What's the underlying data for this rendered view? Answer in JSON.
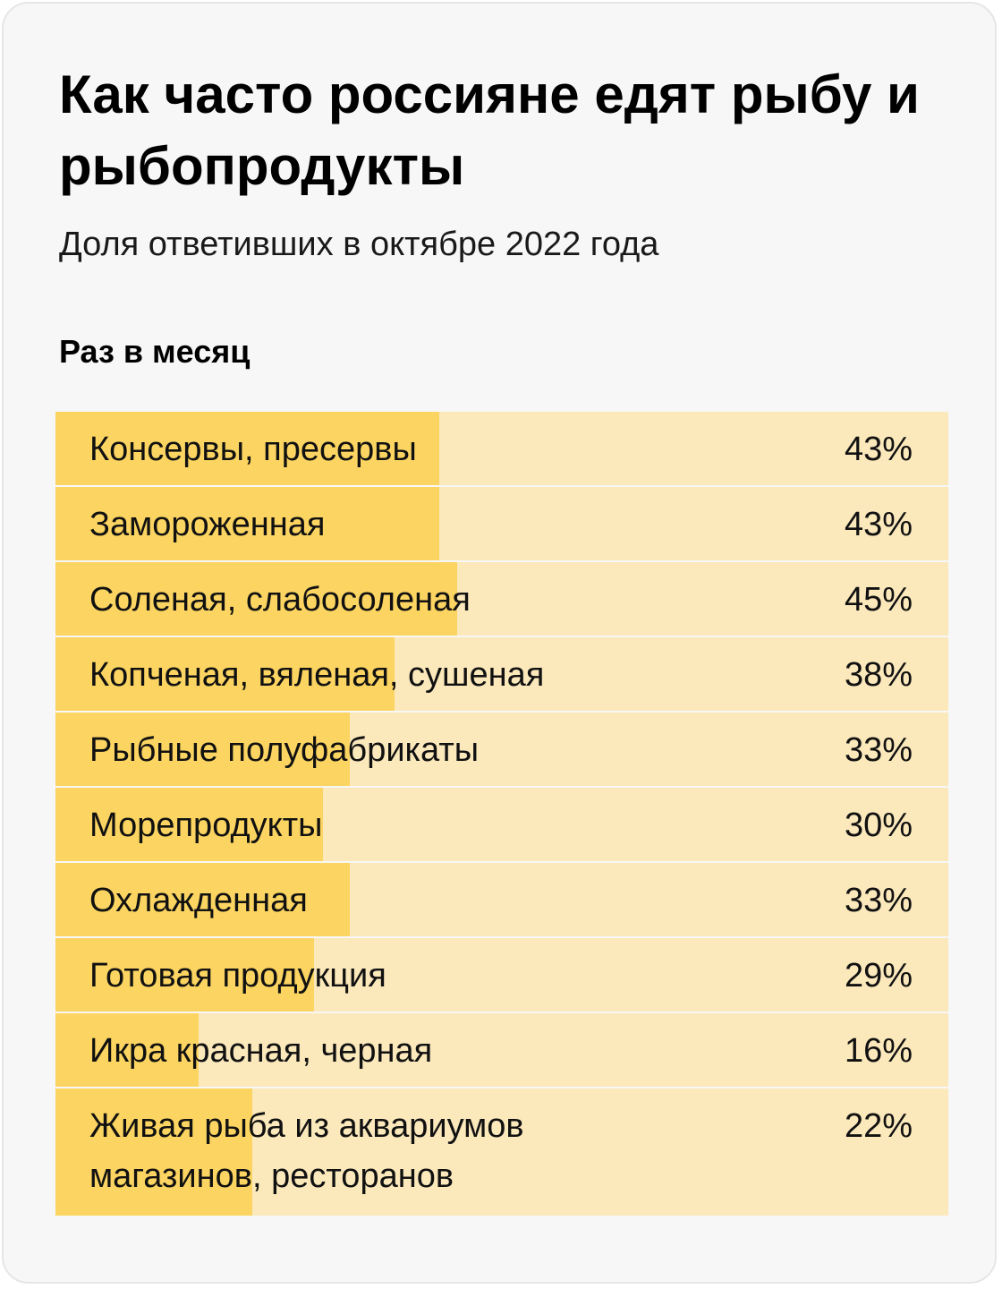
{
  "title": "Как часто россияне едят рыбу и рыбопродукты",
  "subtitle": "Доля ответивших в октябре 2022 года",
  "section": "Раз в месяц",
  "colors": {
    "bar_fill": "#fbd461",
    "bar_track": "#fbe8bb",
    "card_background": "#f7f7f7"
  },
  "chart_data": {
    "type": "bar",
    "orientation": "horizontal",
    "title": "Как часто россияне едят рыбу и рыбопродукты",
    "subtitle": "Доля ответивших в октябре 2022 года",
    "group": "Раз в месяц",
    "unit": "%",
    "xlim": [
      0,
      100
    ],
    "categories": [
      "Консервы, пресервы",
      "Замороженная",
      "Соленая, слабосоленая",
      "Копченая, вяленая, сушеная",
      "Рыбные полуфабрикаты",
      "Морепродукты",
      "Охлажденная",
      "Готовая продукция",
      "Икра красная, черная",
      "Живая рыба из аквариумов\nмагазинов, ресторанов"
    ],
    "values": [
      43,
      43,
      45,
      38,
      33,
      30,
      33,
      29,
      16,
      22
    ],
    "value_labels": [
      "43%",
      "43%",
      "45%",
      "38%",
      "33%",
      "30%",
      "33%",
      "29%",
      "16%",
      "22%"
    ]
  }
}
